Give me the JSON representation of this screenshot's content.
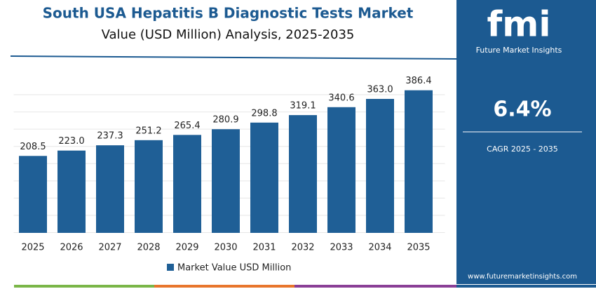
{
  "chart_data": {
    "type": "bar",
    "title": "South USA Hepatitis B Diagnostic Tests Market",
    "subtitle": "Value (USD Million) Analysis, 2025-2035",
    "categories": [
      "2025",
      "2026",
      "2027",
      "2028",
      "2029",
      "2030",
      "2031",
      "2032",
      "2033",
      "2034",
      "2035"
    ],
    "series": [
      {
        "name": "Market Value USD Million",
        "color": "#1f5f96",
        "values": [
          208.5,
          223.0,
          237.3,
          251.2,
          265.4,
          280.9,
          298.8,
          319.1,
          340.6,
          363.0,
          386.4
        ],
        "value_labels": [
          "208.5",
          "223.0",
          "237.3",
          "251.2",
          "265.4",
          "280.9",
          "298.8",
          "319.1",
          "340.6",
          "363.0",
          "386.4"
        ]
      }
    ],
    "ylim": [
      0,
      420
    ]
  },
  "panel": {
    "logo": "fmi",
    "brand": "Future Market Insights",
    "cagr": "6.4%",
    "cagr_label": "CAGR 2025 - 2035",
    "website": "www.futuremarketinsights.com"
  }
}
